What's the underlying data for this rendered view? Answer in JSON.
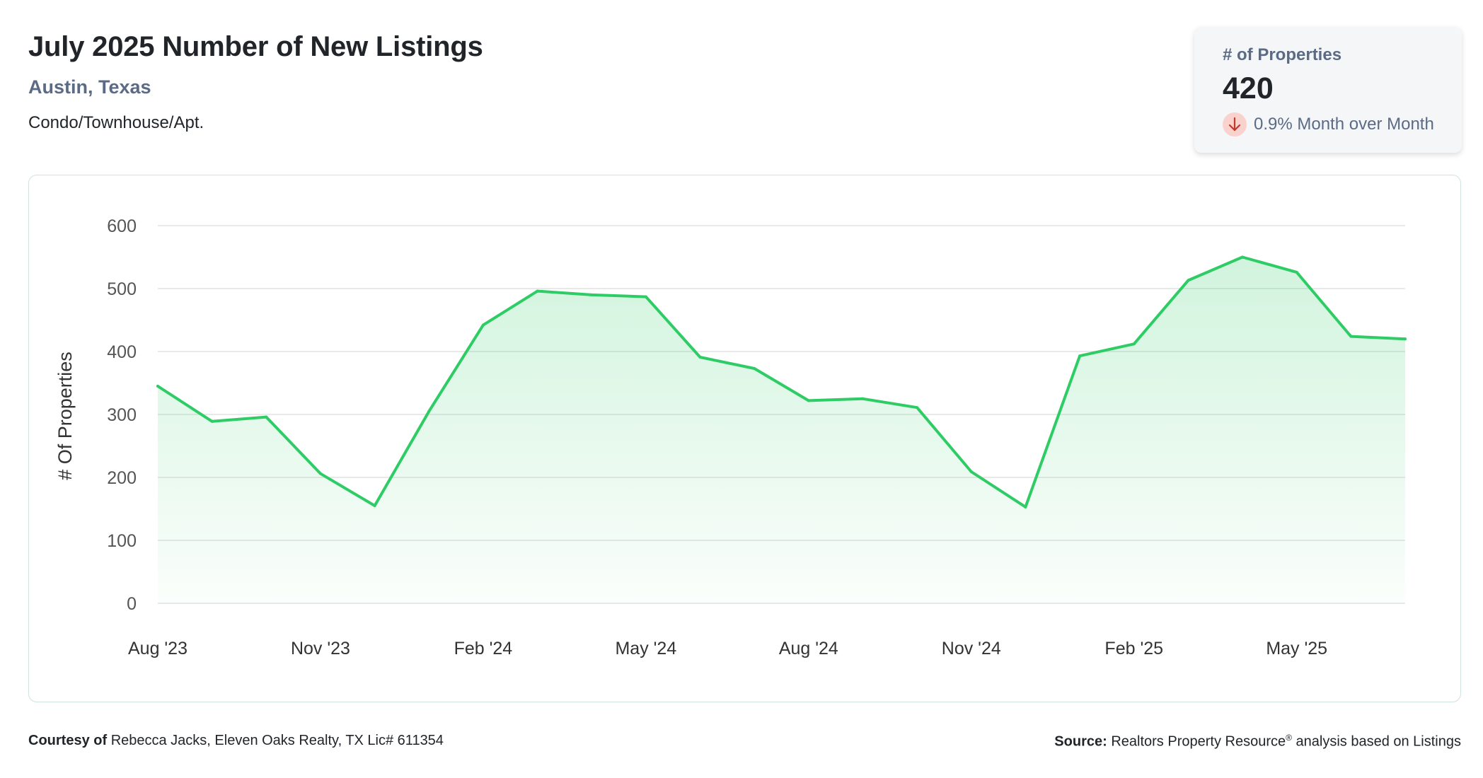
{
  "header": {
    "title": "July 2025 Number of New Listings",
    "location": "Austin, Texas",
    "property_type": "Condo/Townhouse/Apt."
  },
  "stat_card": {
    "label": "# of Properties",
    "value": "420",
    "change": "0.9% Month over Month",
    "direction_icon": "arrow-down-icon",
    "badge_color": "#f9d1cd",
    "arrow_color": "#c0392b"
  },
  "chart_data": {
    "type": "area",
    "title": "",
    "xlabel": "",
    "ylabel": "# Of Properties",
    "ylim": [
      0,
      600
    ],
    "yticks": [
      0,
      100,
      200,
      300,
      400,
      500,
      600
    ],
    "x": [
      "Aug '23",
      "Sep '23",
      "Oct '23",
      "Nov '23",
      "Dec '23",
      "Jan '24",
      "Feb '24",
      "Mar '24",
      "Apr '24",
      "May '24",
      "Jun '24",
      "Jul '24",
      "Aug '24",
      "Sep '24",
      "Oct '24",
      "Nov '24",
      "Dec '24",
      "Jan '25",
      "Feb '25",
      "Mar '25",
      "Apr '25",
      "May '25",
      "Jun '25",
      "Jul '25"
    ],
    "xtick_labels": [
      "Aug '23",
      "Nov '23",
      "Feb '24",
      "May '24",
      "Aug '24",
      "Nov '24",
      "Feb '25",
      "May '25"
    ],
    "values": [
      345,
      289,
      296,
      206,
      155,
      305,
      442,
      496,
      490,
      487,
      391,
      373,
      322,
      325,
      311,
      209,
      153,
      393,
      412,
      513,
      550,
      526,
      424,
      420
    ],
    "grid": true,
    "line_color": "#2ecc65",
    "fill_color": "#2ecc65"
  },
  "footer": {
    "courtesy_label": "Courtesy of",
    "courtesy_text": "Rebecca Jacks, Eleven Oaks Realty, TX Lic# 611354",
    "source_label": "Source:",
    "source_text": "Realtors Property Resource",
    "source_mark": "®",
    "source_suffix": "analysis based on Listings"
  }
}
